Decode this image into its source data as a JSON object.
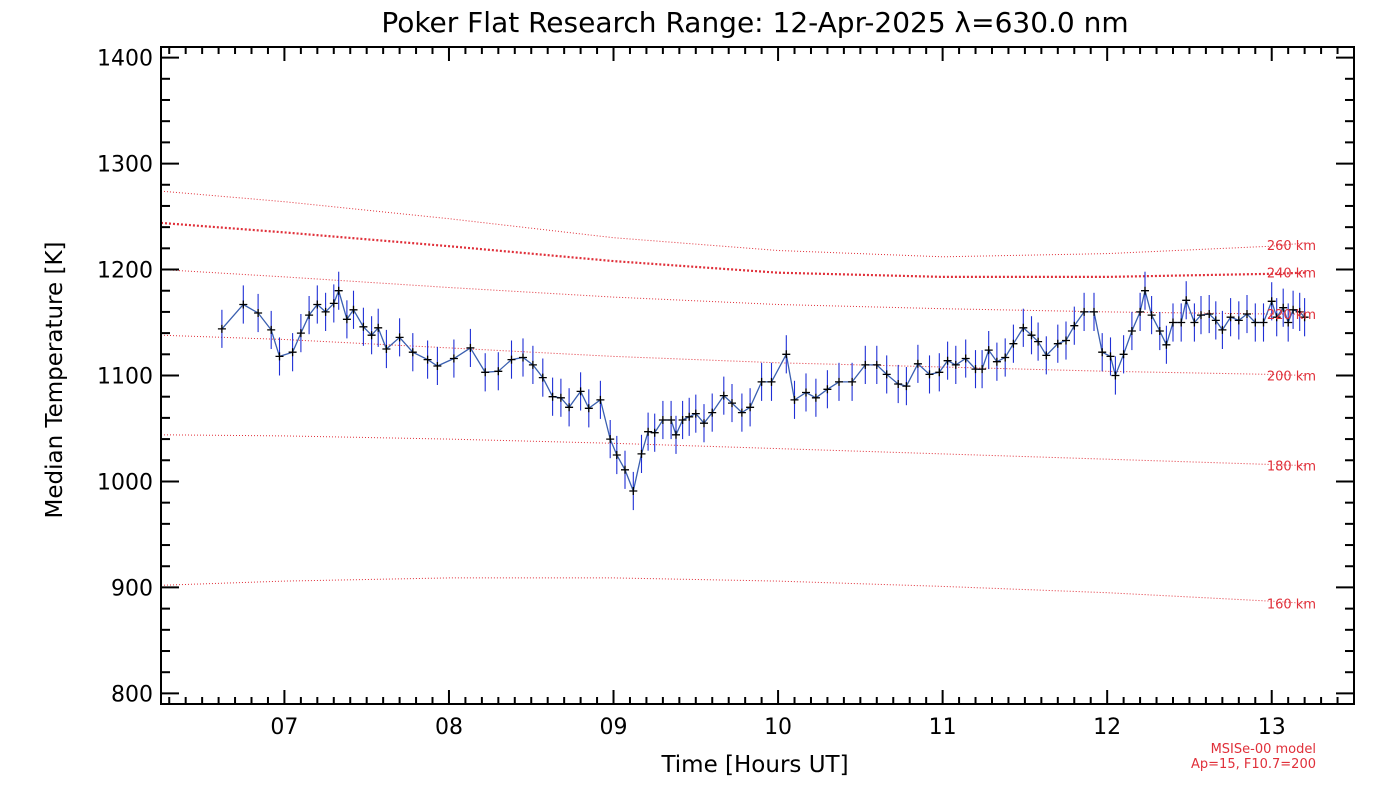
{
  "chart_data": {
    "type": "line",
    "title": "Poker Flat Research Range: 12-Apr-2025 λ=630.0 nm",
    "xlabel": "Time [Hours UT]",
    "ylabel": "Median Temperature [K]",
    "xlim": [
      6.25,
      13.5
    ],
    "ylim": [
      790,
      1410
    ],
    "x_ticks": [
      7,
      8,
      9,
      10,
      11,
      12,
      13
    ],
    "x_tick_labels": [
      "07",
      "08",
      "09",
      "10",
      "11",
      "12",
      "13"
    ],
    "y_ticks": [
      800,
      900,
      1000,
      1100,
      1200,
      1300,
      1400
    ],
    "y_tick_labels": [
      "800",
      "900",
      "1000",
      "1100",
      "1200",
      "1300",
      "1400"
    ],
    "colors": {
      "data": "#000000",
      "errorbar": "#1f2fd6",
      "model": "#e0303a",
      "connector": "#3a5fb0"
    },
    "series": [
      {
        "name": "Median temperature",
        "error": 18,
        "points": [
          [
            6.62,
            1144
          ],
          [
            6.75,
            1167
          ],
          [
            6.84,
            1159
          ],
          [
            6.92,
            1143
          ],
          [
            6.97,
            1118
          ],
          [
            7.05,
            1122
          ],
          [
            7.1,
            1140
          ],
          [
            7.15,
            1157
          ],
          [
            7.2,
            1167
          ],
          [
            7.25,
            1160
          ],
          [
            7.3,
            1168
          ],
          [
            7.33,
            1180
          ],
          [
            7.38,
            1153
          ],
          [
            7.42,
            1162
          ],
          [
            7.48,
            1146
          ],
          [
            7.53,
            1138
          ],
          [
            7.57,
            1145
          ],
          [
            7.62,
            1125
          ],
          [
            7.7,
            1136
          ],
          [
            7.78,
            1122
          ],
          [
            7.87,
            1115
          ],
          [
            7.93,
            1109
          ],
          [
            8.03,
            1116
          ],
          [
            8.13,
            1126
          ],
          [
            8.22,
            1103
          ],
          [
            8.3,
            1104
          ],
          [
            8.38,
            1115
          ],
          [
            8.45,
            1117
          ],
          [
            8.51,
            1110
          ],
          [
            8.57,
            1098
          ],
          [
            8.63,
            1080
          ],
          [
            8.68,
            1079
          ],
          [
            8.73,
            1070
          ],
          [
            8.8,
            1085
          ],
          [
            8.85,
            1069
          ],
          [
            8.92,
            1077
          ],
          [
            8.98,
            1040
          ],
          [
            9.02,
            1025
          ],
          [
            9.07,
            1011
          ],
          [
            9.12,
            991
          ],
          [
            9.17,
            1026
          ],
          [
            9.21,
            1047
          ],
          [
            9.25,
            1046
          ],
          [
            9.3,
            1058
          ],
          [
            9.35,
            1058
          ],
          [
            9.38,
            1044
          ],
          [
            9.42,
            1058
          ],
          [
            9.46,
            1061
          ],
          [
            9.5,
            1064
          ],
          [
            9.55,
            1055
          ],
          [
            9.6,
            1065
          ],
          [
            9.67,
            1081
          ],
          [
            9.72,
            1074
          ],
          [
            9.78,
            1065
          ],
          [
            9.83,
            1070
          ],
          [
            9.9,
            1094
          ],
          [
            9.96,
            1094
          ],
          [
            10.05,
            1120
          ],
          [
            10.1,
            1077
          ],
          [
            10.17,
            1084
          ],
          [
            10.23,
            1079
          ],
          [
            10.3,
            1087
          ],
          [
            10.37,
            1094
          ],
          [
            10.45,
            1094
          ],
          [
            10.53,
            1110
          ],
          [
            10.6,
            1110
          ],
          [
            10.66,
            1101
          ],
          [
            10.73,
            1092
          ],
          [
            10.78,
            1090
          ],
          [
            10.85,
            1111
          ],
          [
            10.92,
            1101
          ],
          [
            10.98,
            1103
          ],
          [
            11.03,
            1114
          ],
          [
            11.08,
            1110
          ],
          [
            11.14,
            1116
          ],
          [
            11.2,
            1106
          ],
          [
            11.24,
            1106
          ],
          [
            11.28,
            1124
          ],
          [
            11.33,
            1113
          ],
          [
            11.38,
            1117
          ],
          [
            11.43,
            1130
          ],
          [
            11.49,
            1145
          ],
          [
            11.54,
            1138
          ],
          [
            11.58,
            1132
          ],
          [
            11.63,
            1119
          ],
          [
            11.7,
            1130
          ],
          [
            11.75,
            1133
          ],
          [
            11.8,
            1147
          ],
          [
            11.86,
            1160
          ],
          [
            11.92,
            1160
          ],
          [
            11.97,
            1122
          ],
          [
            12.02,
            1118
          ],
          [
            12.05,
            1100
          ],
          [
            12.1,
            1120
          ],
          [
            12.15,
            1142
          ],
          [
            12.2,
            1160
          ],
          [
            12.23,
            1180
          ],
          [
            12.27,
            1157
          ],
          [
            12.32,
            1142
          ],
          [
            12.36,
            1129
          ],
          [
            12.4,
            1150
          ],
          [
            12.45,
            1150
          ],
          [
            12.48,
            1171
          ],
          [
            12.53,
            1150
          ],
          [
            12.57,
            1157
          ],
          [
            12.62,
            1158
          ],
          [
            12.66,
            1152
          ],
          [
            12.7,
            1143
          ],
          [
            12.75,
            1155
          ],
          [
            12.8,
            1152
          ],
          [
            12.85,
            1158
          ],
          [
            12.9,
            1150
          ],
          [
            12.95,
            1150
          ],
          [
            13.0,
            1170
          ],
          [
            13.03,
            1155
          ],
          [
            13.07,
            1164
          ],
          [
            13.1,
            1150
          ],
          [
            13.13,
            1162
          ],
          [
            13.17,
            1160
          ],
          [
            13.2,
            1155
          ]
        ]
      }
    ],
    "model_curves": [
      {
        "label": "160 km",
        "values": [
          [
            6.25,
            902
          ],
          [
            7.0,
            906
          ],
          [
            8.0,
            909
          ],
          [
            9.0,
            909
          ],
          [
            10.0,
            906
          ],
          [
            11.0,
            901
          ],
          [
            12.0,
            895
          ],
          [
            13.0,
            887
          ],
          [
            13.2,
            885
          ]
        ],
        "style": "thin"
      },
      {
        "label": "180 km",
        "values": [
          [
            6.25,
            1044
          ],
          [
            7.0,
            1043
          ],
          [
            8.0,
            1040
          ],
          [
            9.0,
            1036
          ],
          [
            10.0,
            1031
          ],
          [
            11.0,
            1026
          ],
          [
            12.0,
            1021
          ],
          [
            13.0,
            1016
          ],
          [
            13.2,
            1015
          ]
        ],
        "style": "thin"
      },
      {
        "label": "200 km",
        "values": [
          [
            6.25,
            1138
          ],
          [
            7.0,
            1134
          ],
          [
            8.0,
            1126
          ],
          [
            9.0,
            1118
          ],
          [
            10.0,
            1112
          ],
          [
            11.0,
            1108
          ],
          [
            12.0,
            1104
          ],
          [
            13.0,
            1101
          ],
          [
            13.2,
            1100
          ]
        ],
        "style": "thin"
      },
      {
        "label": "220 km",
        "values": [
          [
            6.25,
            1200
          ],
          [
            7.0,
            1193
          ],
          [
            8.0,
            1183
          ],
          [
            9.0,
            1174
          ],
          [
            10.0,
            1167
          ],
          [
            11.0,
            1163
          ],
          [
            12.0,
            1160
          ],
          [
            13.0,
            1158
          ],
          [
            13.2,
            1158
          ]
        ],
        "style": "thin"
      },
      {
        "label": "240 km",
        "values": [
          [
            6.25,
            1244
          ],
          [
            7.0,
            1235
          ],
          [
            8.0,
            1222
          ],
          [
            9.0,
            1208
          ],
          [
            10.0,
            1197
          ],
          [
            11.0,
            1193
          ],
          [
            12.0,
            1193
          ],
          [
            13.0,
            1196
          ],
          [
            13.2,
            1197
          ]
        ],
        "style": "thick"
      },
      {
        "label": "260 km",
        "values": [
          [
            6.25,
            1274
          ],
          [
            7.0,
            1264
          ],
          [
            8.0,
            1248
          ],
          [
            9.0,
            1230
          ],
          [
            10.0,
            1218
          ],
          [
            11.0,
            1212
          ],
          [
            12.0,
            1215
          ],
          [
            13.0,
            1222
          ],
          [
            13.2,
            1225
          ]
        ],
        "style": "thin"
      }
    ],
    "model_label_values": [
      {
        "label": "260 km",
        "y": 1223
      },
      {
        "label": "240 km",
        "y": 1197
      },
      {
        "label": "220 km",
        "y": 1158
      },
      {
        "label": "200 km",
        "y": 1100
      },
      {
        "label": "180 km",
        "y": 1015
      },
      {
        "label": "160 km",
        "y": 885
      }
    ],
    "annotation": {
      "line1": "MSISe-00 model",
      "line2": "Ap=15, F10.7=200"
    }
  }
}
